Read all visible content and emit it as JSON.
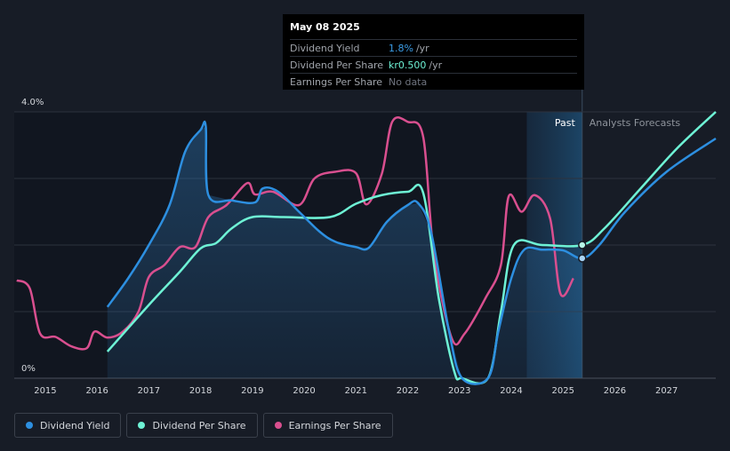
{
  "tooltip": {
    "date": "May 08 2025",
    "rows": [
      {
        "label": "Dividend Yield",
        "value": "1.8%",
        "unit": "/yr"
      },
      {
        "label": "Dividend Per Share",
        "value": "kr0.500",
        "unit": "/yr"
      },
      {
        "label": "Earnings Per Share",
        "value": "No data"
      }
    ]
  },
  "legend": [
    {
      "label": "Dividend Yield",
      "color": "#2d8fe0"
    },
    {
      "label": "Dividend Per Share",
      "color": "#6ef2d5"
    },
    {
      "label": "Earnings Per Share",
      "color": "#d94f8f"
    }
  ],
  "chart_data": {
    "type": "line",
    "ylim_labels": [
      "4.0%",
      "0%"
    ],
    "y_ticks": [
      "4.0%",
      "0%"
    ],
    "x_ticks": [
      "2015",
      "2016",
      "2017",
      "2018",
      "2019",
      "2020",
      "2021",
      "2022",
      "2023",
      "2024",
      "2025",
      "2026",
      "2027"
    ],
    "xlim": [
      2014.4,
      2027.95
    ],
    "ylim": [
      0,
      4.0
    ],
    "past_label": "Past",
    "forecast_label": "Analysts Forecasts",
    "forecast_start": 2025.37,
    "highlight_start": 2024.3,
    "series": [
      {
        "name": "Dividend Yield",
        "color": "#2d8fe0",
        "points": [
          [
            2016.2,
            1.07
          ],
          [
            2016.6,
            1.5
          ],
          [
            2017.0,
            2.0
          ],
          [
            2017.4,
            2.6
          ],
          [
            2017.7,
            3.4
          ],
          [
            2018.0,
            3.73
          ],
          [
            2018.1,
            3.78
          ],
          [
            2018.15,
            2.75
          ],
          [
            2018.6,
            2.67
          ],
          [
            2019.05,
            2.64
          ],
          [
            2019.2,
            2.85
          ],
          [
            2019.5,
            2.8
          ],
          [
            2019.9,
            2.5
          ],
          [
            2020.3,
            2.2
          ],
          [
            2020.6,
            2.05
          ],
          [
            2021.0,
            1.97
          ],
          [
            2021.25,
            1.96
          ],
          [
            2021.6,
            2.35
          ],
          [
            2022.0,
            2.6
          ],
          [
            2022.2,
            2.63
          ],
          [
            2022.45,
            2.2
          ],
          [
            2022.8,
            0.7
          ],
          [
            2023.05,
            0.0
          ],
          [
            2023.55,
            0.0
          ],
          [
            2023.75,
            0.7
          ],
          [
            2024.0,
            1.5
          ],
          [
            2024.25,
            1.93
          ],
          [
            2024.6,
            1.93
          ],
          [
            2025.0,
            1.92
          ],
          [
            2025.37,
            1.8
          ],
          [
            2025.7,
            2.0
          ],
          [
            2026.2,
            2.5
          ],
          [
            2027.0,
            3.1
          ],
          [
            2027.95,
            3.6
          ]
        ],
        "dot": [
          2025.37,
          1.8
        ]
      },
      {
        "name": "Dividend Per Share",
        "color": "#6ef2d5",
        "points": [
          [
            2016.2,
            0.4
          ],
          [
            2017.0,
            1.1
          ],
          [
            2017.6,
            1.6
          ],
          [
            2018.0,
            1.95
          ],
          [
            2018.3,
            2.03
          ],
          [
            2018.6,
            2.25
          ],
          [
            2019.0,
            2.42
          ],
          [
            2019.6,
            2.42
          ],
          [
            2020.5,
            2.42
          ],
          [
            2021.0,
            2.62
          ],
          [
            2021.5,
            2.75
          ],
          [
            2022.0,
            2.8
          ],
          [
            2022.3,
            2.78
          ],
          [
            2022.6,
            1.2
          ],
          [
            2022.9,
            0.1
          ],
          [
            2023.05,
            0.0
          ],
          [
            2023.55,
            0.0
          ],
          [
            2023.8,
            1.0
          ],
          [
            2024.05,
            2.0
          ],
          [
            2024.6,
            2.0
          ],
          [
            2025.37,
            2.0
          ],
          [
            2025.8,
            2.25
          ],
          [
            2026.5,
            2.85
          ],
          [
            2027.2,
            3.45
          ],
          [
            2027.95,
            4.0
          ]
        ],
        "dot": [
          2025.37,
          2.0
        ]
      },
      {
        "name": "Earnings Per Share",
        "color": "#d94f8f",
        "points": [
          [
            2014.45,
            1.47
          ],
          [
            2014.7,
            1.35
          ],
          [
            2014.9,
            0.67
          ],
          [
            2015.2,
            0.62
          ],
          [
            2015.5,
            0.48
          ],
          [
            2015.8,
            0.45
          ],
          [
            2015.95,
            0.7
          ],
          [
            2016.2,
            0.61
          ],
          [
            2016.5,
            0.7
          ],
          [
            2016.8,
            1.0
          ],
          [
            2017.0,
            1.52
          ],
          [
            2017.3,
            1.7
          ],
          [
            2017.6,
            1.97
          ],
          [
            2017.9,
            1.97
          ],
          [
            2018.15,
            2.42
          ],
          [
            2018.5,
            2.6
          ],
          [
            2018.9,
            2.93
          ],
          [
            2019.05,
            2.76
          ],
          [
            2019.4,
            2.8
          ],
          [
            2019.9,
            2.6
          ],
          [
            2020.2,
            3.0
          ],
          [
            2020.6,
            3.1
          ],
          [
            2021.0,
            3.08
          ],
          [
            2021.2,
            2.61
          ],
          [
            2021.5,
            3.07
          ],
          [
            2021.7,
            3.85
          ],
          [
            2022.0,
            3.85
          ],
          [
            2022.3,
            3.62
          ],
          [
            2022.5,
            1.9
          ],
          [
            2022.85,
            0.6
          ],
          [
            2023.1,
            0.67
          ],
          [
            2023.5,
            1.2
          ],
          [
            2023.8,
            1.7
          ],
          [
            2023.95,
            2.73
          ],
          [
            2024.2,
            2.5
          ],
          [
            2024.45,
            2.75
          ],
          [
            2024.75,
            2.4
          ],
          [
            2024.95,
            1.27
          ],
          [
            2025.2,
            1.5
          ]
        ]
      }
    ]
  }
}
